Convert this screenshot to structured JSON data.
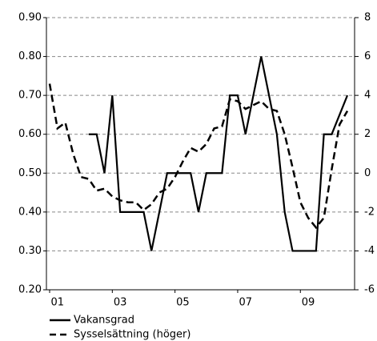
{
  "chart_data": {
    "type": "line",
    "categories": [
      null,
      "01",
      null,
      null,
      null,
      null,
      null,
      null,
      null,
      "03",
      null,
      null,
      null,
      null,
      null,
      null,
      null,
      "05",
      null,
      null,
      null,
      null,
      null,
      null,
      null,
      "07",
      null,
      null,
      null,
      null,
      null,
      null,
      null,
      "09",
      null,
      null,
      null,
      null,
      null
    ],
    "series": [
      {
        "name": "Vakansgrad",
        "color": "#000000",
        "dash": "solid",
        "values": [
          null,
          null,
          null,
          null,
          null,
          0.6,
          0.6,
          0.5,
          0.7,
          0.4,
          0.4,
          0.4,
          0.4,
          0.3,
          0.4,
          0.5,
          0.5,
          0.5,
          0.5,
          0.4,
          0.5,
          0.5,
          0.5,
          0.7,
          0.7,
          0.6,
          0.7,
          0.8,
          0.7,
          0.6,
          0.4,
          0.3,
          0.3,
          0.3,
          0.3,
          0.6,
          0.6,
          0.65,
          0.7
        ]
      },
      {
        "name": "Sysselsättning (höger)",
        "color": "#000000",
        "dash": "dashed",
        "axis": "y2",
        "values": [
          4.6,
          2.3,
          2.6,
          1.0,
          -0.2,
          -0.3,
          -0.9,
          -0.8,
          -1.2,
          -1.4,
          -1.5,
          -1.5,
          -1.9,
          -1.6,
          -1.0,
          -0.8,
          -0.2,
          0.6,
          1.3,
          1.1,
          1.5,
          2.3,
          2.4,
          3.8,
          3.7,
          3.3,
          3.5,
          3.7,
          3.3,
          3.2,
          2.0,
          0.3,
          -1.5,
          -2.3,
          -2.8,
          -2.3,
          0.2,
          2.5,
          3.2
        ]
      }
    ],
    "ylim": [
      0.2,
      0.9
    ],
    "yticks": [
      {
        "value": 0.2,
        "label": "0.20"
      },
      {
        "value": 0.3,
        "label": "0.30"
      },
      {
        "value": 0.4,
        "label": "0.40"
      },
      {
        "value": 0.5,
        "label": "0.50"
      },
      {
        "value": 0.6,
        "label": "0.60"
      },
      {
        "value": 0.7,
        "label": "0.70"
      },
      {
        "value": 0.8,
        "label": "0.80"
      },
      {
        "value": 0.9,
        "label": "0.90"
      }
    ],
    "y2lim": [
      -6,
      8
    ],
    "y2ticks": [
      -6,
      -4,
      -2,
      0,
      2,
      4,
      6,
      8
    ],
    "grid": true
  }
}
